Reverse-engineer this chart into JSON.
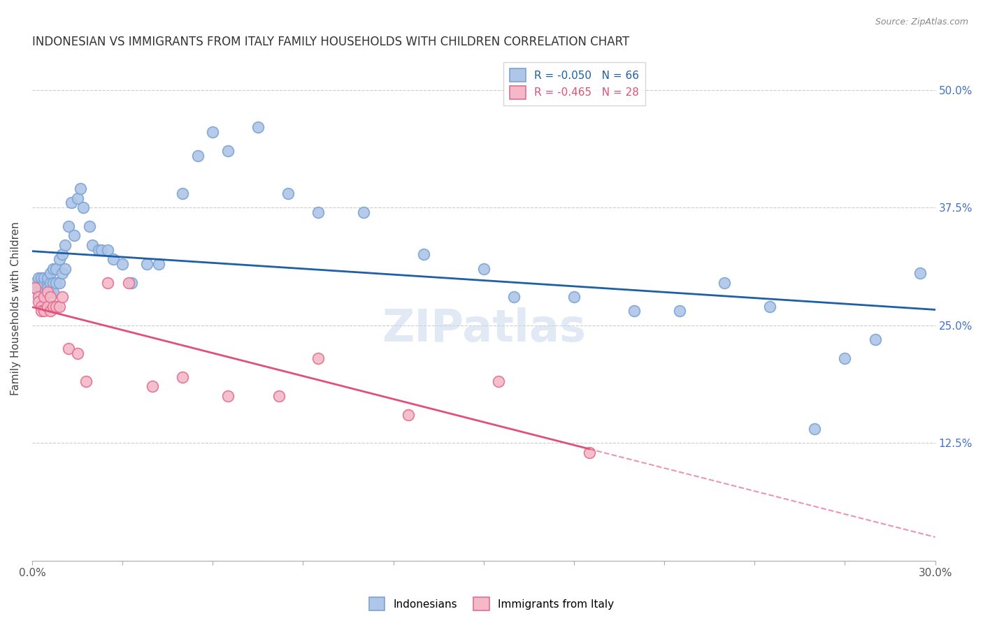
{
  "title": "INDONESIAN VS IMMIGRANTS FROM ITALY FAMILY HOUSEHOLDS WITH CHILDREN CORRELATION CHART",
  "source": "Source: ZipAtlas.com",
  "ylabel": "Family Households with Children",
  "ytick_vals": [
    0.0,
    0.125,
    0.25,
    0.375,
    0.5
  ],
  "ytick_labels": [
    "",
    "12.5%",
    "25.0%",
    "37.5%",
    "50.0%"
  ],
  "xlim": [
    0.0,
    0.3
  ],
  "ylim": [
    0.0,
    0.535
  ],
  "legend1_label": "R = -0.050   N = 66",
  "legend2_label": "R = -0.465   N = 28",
  "legend1_color": "#aec6e8",
  "legend2_color": "#f4b8c8",
  "line1_color": "#1f5fa6",
  "line2_color": "#e05078",
  "scatter1_color": "#aec6e8",
  "scatter1_edge": "#7ba3d4",
  "scatter2_color": "#f4b8c8",
  "scatter2_edge": "#e07090",
  "watermark": "ZIPatlas",
  "indonesian_x": [
    0.001,
    0.001,
    0.002,
    0.002,
    0.002,
    0.003,
    0.003,
    0.003,
    0.003,
    0.004,
    0.004,
    0.004,
    0.005,
    0.005,
    0.005,
    0.005,
    0.006,
    0.006,
    0.006,
    0.007,
    0.007,
    0.007,
    0.008,
    0.008,
    0.009,
    0.009,
    0.01,
    0.01,
    0.011,
    0.011,
    0.012,
    0.013,
    0.014,
    0.015,
    0.016,
    0.017,
    0.019,
    0.02,
    0.022,
    0.023,
    0.025,
    0.027,
    0.03,
    0.033,
    0.038,
    0.042,
    0.05,
    0.055,
    0.06,
    0.065,
    0.075,
    0.085,
    0.095,
    0.11,
    0.13,
    0.15,
    0.16,
    0.18,
    0.2,
    0.215,
    0.23,
    0.245,
    0.26,
    0.27,
    0.28,
    0.295
  ],
  "indonesian_y": [
    0.29,
    0.295,
    0.285,
    0.3,
    0.29,
    0.295,
    0.285,
    0.3,
    0.29,
    0.295,
    0.285,
    0.3,
    0.295,
    0.285,
    0.29,
    0.3,
    0.295,
    0.285,
    0.305,
    0.31,
    0.295,
    0.285,
    0.31,
    0.295,
    0.32,
    0.295,
    0.325,
    0.305,
    0.335,
    0.31,
    0.355,
    0.38,
    0.345,
    0.385,
    0.395,
    0.375,
    0.355,
    0.335,
    0.33,
    0.33,
    0.33,
    0.32,
    0.315,
    0.295,
    0.315,
    0.315,
    0.39,
    0.43,
    0.455,
    0.435,
    0.46,
    0.39,
    0.37,
    0.37,
    0.325,
    0.31,
    0.28,
    0.28,
    0.265,
    0.265,
    0.295,
    0.27,
    0.14,
    0.215,
    0.235,
    0.305
  ],
  "italy_x": [
    0.001,
    0.002,
    0.002,
    0.003,
    0.003,
    0.004,
    0.004,
    0.005,
    0.005,
    0.006,
    0.006,
    0.007,
    0.008,
    0.009,
    0.01,
    0.012,
    0.015,
    0.018,
    0.025,
    0.032,
    0.04,
    0.05,
    0.065,
    0.082,
    0.095,
    0.125,
    0.155,
    0.185
  ],
  "italy_y": [
    0.29,
    0.28,
    0.275,
    0.27,
    0.265,
    0.28,
    0.265,
    0.285,
    0.27,
    0.28,
    0.265,
    0.27,
    0.27,
    0.27,
    0.28,
    0.225,
    0.22,
    0.19,
    0.295,
    0.295,
    0.185,
    0.195,
    0.175,
    0.175,
    0.215,
    0.155,
    0.19,
    0.115
  ]
}
